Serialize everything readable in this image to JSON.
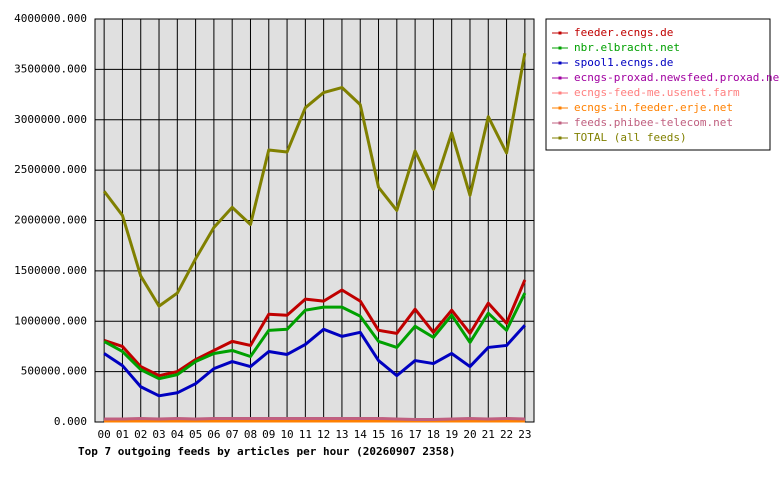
{
  "chart_data": {
    "type": "line",
    "title": "Top 7 outgoing feeds by articles per hour (20260907 2358)",
    "categories": [
      "00",
      "01",
      "02",
      "03",
      "04",
      "05",
      "06",
      "07",
      "08",
      "09",
      "10",
      "11",
      "12",
      "13",
      "14",
      "15",
      "16",
      "17",
      "18",
      "19",
      "20",
      "21",
      "22",
      "23"
    ],
    "ylim": [
      0,
      4000000
    ],
    "yticks": [
      {
        "value": 0,
        "label": "0.000"
      },
      {
        "value": 500000,
        "label": "500000.000"
      },
      {
        "value": 1000000,
        "label": "1000000.000"
      },
      {
        "value": 1500000,
        "label": "1500000.000"
      },
      {
        "value": 2000000,
        "label": "2000000.000"
      },
      {
        "value": 2500000,
        "label": "2500000.000"
      },
      {
        "value": 3000000,
        "label": "3000000.000"
      },
      {
        "value": 3500000,
        "label": "3500000.000"
      },
      {
        "value": 4000000,
        "label": "4000000.000"
      }
    ],
    "grid": true,
    "series": [
      {
        "name": "feeder.ecngs.de",
        "color": "#c00000",
        "values": [
          810000,
          750000,
          550000,
          460000,
          500000,
          620000,
          710000,
          800000,
          760000,
          1070000,
          1060000,
          1220000,
          1200000,
          1310000,
          1200000,
          910000,
          880000,
          1120000,
          890000,
          1110000,
          880000,
          1180000,
          980000,
          1410000
        ]
      },
      {
        "name": "nbr.elbracht.net",
        "color": "#00a000",
        "values": [
          800000,
          700000,
          520000,
          430000,
          470000,
          600000,
          680000,
          710000,
          650000,
          910000,
          920000,
          1110000,
          1140000,
          1140000,
          1050000,
          800000,
          740000,
          950000,
          840000,
          1060000,
          790000,
          1080000,
          910000,
          1280000
        ]
      },
      {
        "name": "spool1.ecngs.de",
        "color": "#0000c0",
        "values": [
          680000,
          560000,
          350000,
          260000,
          290000,
          380000,
          530000,
          600000,
          550000,
          700000,
          670000,
          770000,
          920000,
          850000,
          890000,
          610000,
          460000,
          610000,
          580000,
          680000,
          550000,
          740000,
          760000,
          960000
        ]
      },
      {
        "name": "ecngs-proxad.newsfeed.proxad.net",
        "color": "#a000a0",
        "values": [
          25000,
          25000,
          30000,
          25000,
          30000,
          25000,
          30000,
          30000,
          30000,
          30000,
          30000,
          30000,
          30000,
          30000,
          30000,
          30000,
          25000,
          20000,
          20000,
          25000,
          30000,
          25000,
          30000,
          25000
        ]
      },
      {
        "name": "ecngs-feed-me.usenet.farm",
        "color": "#ff8080",
        "values": [
          15000,
          15000,
          20000,
          15000,
          15000,
          15000,
          15000,
          15000,
          15000,
          15000,
          15000,
          15000,
          15000,
          15000,
          15000,
          15000,
          15000,
          15000,
          15000,
          15000,
          15000,
          15000,
          15000,
          15000
        ]
      },
      {
        "name": "ecngs-in.feeder.erje.net",
        "color": "#ff8000",
        "values": [
          10000,
          10000,
          10000,
          10000,
          10000,
          10000,
          10000,
          10000,
          10000,
          10000,
          10000,
          10000,
          10000,
          10000,
          10000,
          10000,
          10000,
          10000,
          10000,
          10000,
          10000,
          10000,
          10000,
          10000
        ]
      },
      {
        "name": "feeds.phibee-telecom.net",
        "color": "#c06080",
        "values": [
          30000,
          30000,
          35000,
          30000,
          35000,
          30000,
          35000,
          35000,
          35000,
          35000,
          35000,
          35000,
          35000,
          35000,
          35000,
          35000,
          30000,
          25000,
          25000,
          30000,
          35000,
          30000,
          35000,
          30000
        ]
      },
      {
        "name": "TOTAL (all feeds)",
        "color": "#808000",
        "values": [
          2290000,
          2050000,
          1450000,
          1150000,
          1280000,
          1620000,
          1930000,
          2130000,
          1960000,
          2700000,
          2680000,
          3120000,
          3270000,
          3320000,
          3150000,
          2330000,
          2100000,
          2690000,
          2310000,
          2870000,
          2250000,
          3030000,
          2670000,
          3660000
        ]
      }
    ]
  }
}
